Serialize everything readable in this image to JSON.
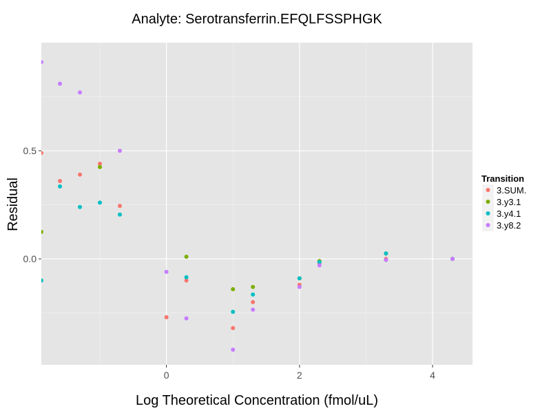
{
  "chart_data": {
    "type": "scatter",
    "title": "Analyte: Serotransferrin.EFQLFSSPHGK",
    "xlabel": "Log Theoretical Concentration (fmol/uL)",
    "ylabel": "Residual",
    "xlim": [
      -1.88,
      4.6
    ],
    "ylim": [
      -0.49,
      1.0
    ],
    "x_ticks": [
      0,
      2,
      4
    ],
    "x_tick_labels": [
      "0",
      "2",
      "4"
    ],
    "y_ticks": [
      0.0,
      0.5
    ],
    "y_tick_labels": [
      "0.0",
      "0.5"
    ],
    "grid": true,
    "legend": {
      "title": "Transition",
      "position": "right"
    },
    "series": [
      {
        "name": "3.SUM.",
        "color": "#F8766D",
        "points": [
          [
            -1.88,
            0.49
          ],
          [
            -1.6,
            0.36
          ],
          [
            -1.3,
            0.39
          ],
          [
            -1.0,
            0.44
          ],
          [
            -0.7,
            0.245
          ],
          [
            0.0,
            -0.27
          ],
          [
            0.3,
            -0.1
          ],
          [
            1.0,
            -0.32
          ],
          [
            1.3,
            -0.2
          ],
          [
            2.0,
            -0.12
          ],
          [
            2.3,
            -0.02
          ],
          [
            3.3,
            0.0
          ],
          [
            4.3,
            0.0
          ]
        ]
      },
      {
        "name": "3.y3.1",
        "color": "#7CAE00",
        "points": [
          [
            -1.88,
            0.125
          ],
          [
            -1.0,
            0.425
          ],
          [
            0.3,
            0.01
          ],
          [
            1.0,
            -0.14
          ],
          [
            1.3,
            -0.13
          ],
          [
            2.0,
            -0.09
          ],
          [
            2.3,
            -0.01
          ],
          [
            3.3,
            0.025
          ],
          [
            4.3,
            0.0
          ]
        ]
      },
      {
        "name": "3.y4.1",
        "color": "#00BFC4",
        "points": [
          [
            -1.88,
            -0.1
          ],
          [
            -1.6,
            0.335
          ],
          [
            -1.3,
            0.24
          ],
          [
            -1.0,
            0.26
          ],
          [
            -0.7,
            0.205
          ],
          [
            0.3,
            -0.085
          ],
          [
            1.0,
            -0.245
          ],
          [
            1.3,
            -0.165
          ],
          [
            2.0,
            -0.09
          ],
          [
            2.3,
            -0.015
          ],
          [
            3.3,
            0.025
          ],
          [
            4.3,
            0.0
          ]
        ]
      },
      {
        "name": "3.y8.2",
        "color": "#C77CFF",
        "points": [
          [
            -1.88,
            0.91
          ],
          [
            -1.6,
            0.81
          ],
          [
            -1.3,
            0.77
          ],
          [
            -0.7,
            0.5
          ],
          [
            0.0,
            -0.06
          ],
          [
            0.3,
            -0.275
          ],
          [
            1.0,
            -0.42
          ],
          [
            1.3,
            -0.235
          ],
          [
            2.0,
            -0.13
          ],
          [
            2.3,
            -0.03
          ],
          [
            3.3,
            -0.005
          ],
          [
            4.3,
            0.0
          ]
        ]
      }
    ]
  }
}
